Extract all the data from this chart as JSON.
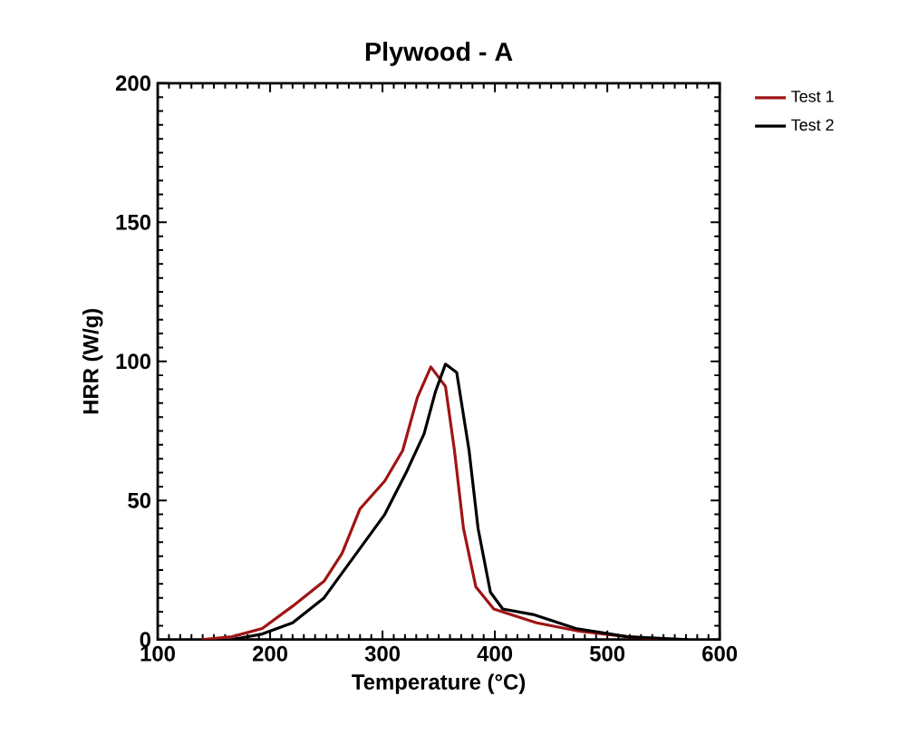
{
  "chart_data": {
    "type": "line",
    "title": "Plywood - A",
    "xlabel": "Temperature (°C)",
    "ylabel": "HRR (W/g)",
    "xlim": [
      100,
      600
    ],
    "xticks": [
      100,
      200,
      300,
      400,
      500,
      600
    ],
    "ylim": [
      0,
      200
    ],
    "yticks": [
      0,
      50,
      100,
      150,
      200
    ],
    "legend": "top right",
    "grid": false,
    "series": [
      {
        "name": "Test 1",
        "color": "#a01414",
        "x": [
          139,
          166,
          193,
          220,
          248,
          264,
          280,
          302,
          318,
          331,
          343,
          356,
          364,
          372,
          383,
          399,
          437,
          475,
          518,
          550
        ],
        "values": [
          0,
          1,
          4,
          12,
          21,
          31,
          47,
          57,
          68,
          87,
          98,
          91,
          68,
          40,
          19,
          11,
          6,
          3,
          1,
          0
        ]
      },
      {
        "name": "Test 2",
        "color": "#000000",
        "x": [
          166,
          193,
          220,
          248,
          275,
          302,
          321,
          337,
          347,
          356,
          366,
          377,
          385,
          396,
          407,
          434,
          472,
          518,
          572
        ],
        "values": [
          0,
          2,
          6,
          15,
          30,
          45,
          60,
          74,
          89,
          99,
          96,
          68,
          40,
          17,
          11,
          9,
          4,
          1,
          0
        ]
      }
    ]
  }
}
